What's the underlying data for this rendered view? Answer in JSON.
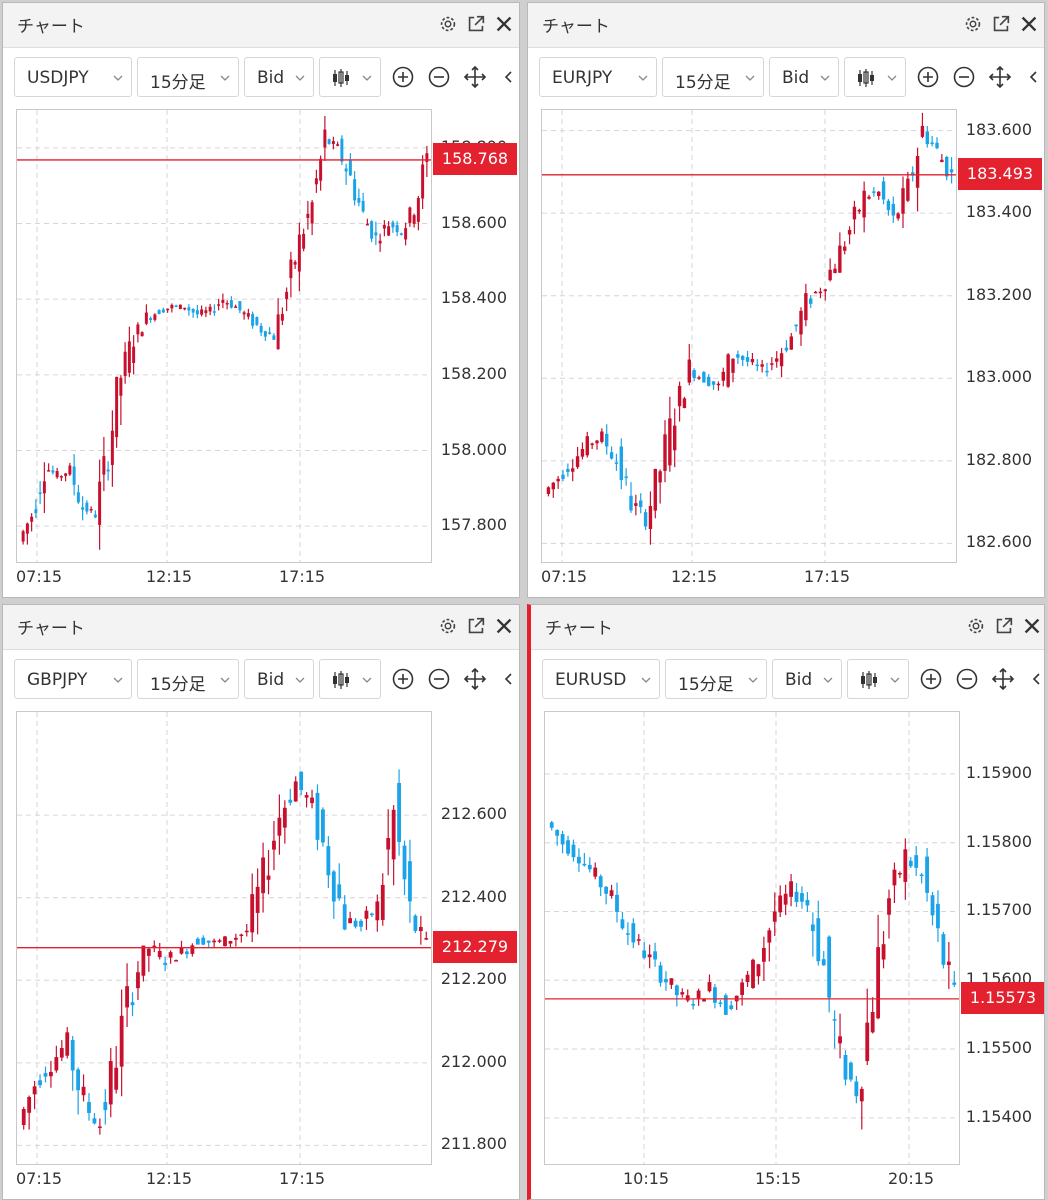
{
  "panels": [
    {
      "window_title": "チャート",
      "symbol": "USDJPY",
      "timeframe": "15分足",
      "price_type": "Bid",
      "current_price": "158.768",
      "y_ticks": [
        "158.800",
        "158.600",
        "158.400",
        "158.200",
        "158.000",
        "157.800"
      ],
      "x_ticks": [
        "07:15",
        "12:15",
        "17:15"
      ],
      "active": false
    },
    {
      "window_title": "チャート",
      "symbol": "EURJPY",
      "timeframe": "15分足",
      "price_type": "Bid",
      "current_price": "183.493",
      "y_ticks": [
        "183.600",
        "183.400",
        "183.200",
        "183.000",
        "182.800",
        "182.600"
      ],
      "x_ticks": [
        "07:15",
        "12:15",
        "17:15"
      ],
      "active": false
    },
    {
      "window_title": "チャート",
      "symbol": "GBPJPY",
      "timeframe": "15分足",
      "price_type": "Bid",
      "current_price": "212.279",
      "y_ticks": [
        "212.600",
        "212.400",
        "212.200",
        "212.000",
        "211.800"
      ],
      "x_ticks": [
        "07:15",
        "12:15",
        "17:15"
      ],
      "active": false
    },
    {
      "window_title": "チャート",
      "symbol": "EURUSD",
      "timeframe": "15分足",
      "price_type": "Bid",
      "current_price": "1.15573",
      "y_ticks": [
        "1.15900",
        "1.15800",
        "1.15700",
        "1.15600",
        "1.15500",
        "1.15400"
      ],
      "x_ticks": [
        "10:15",
        "15:15",
        "20:15"
      ],
      "active": true
    }
  ],
  "colors": {
    "up": "#c8102e",
    "down": "#1aa3e8",
    "price_line": "#e3212f"
  },
  "chart_data": [
    {
      "type": "candlestick",
      "symbol": "USDJPY",
      "price_line": 158.768,
      "ylim": [
        157.7,
        158.9
      ],
      "x_ticks": [
        "07:15",
        "12:15",
        "17:15"
      ],
      "close_path": [
        157.76,
        157.83,
        157.96,
        157.93,
        157.95,
        157.85,
        157.83,
        158.0,
        158.2,
        158.3,
        158.35,
        158.37,
        158.38,
        158.38,
        158.36,
        158.37,
        158.4,
        158.38,
        158.35,
        158.32,
        158.3,
        158.42,
        158.55,
        158.65,
        158.82,
        158.8,
        158.72,
        158.62,
        158.56,
        158.6,
        158.58,
        158.64,
        158.77
      ]
    },
    {
      "type": "candlestick",
      "symbol": "EURJPY",
      "price_line": 183.493,
      "ylim": [
        182.55,
        183.65
      ],
      "x_ticks": [
        "07:15",
        "12:15",
        "17:15"
      ],
      "close_path": [
        182.72,
        182.76,
        182.8,
        182.84,
        182.86,
        182.8,
        182.7,
        182.66,
        182.78,
        182.92,
        183.02,
        183.0,
        182.98,
        183.06,
        183.04,
        183.02,
        183.05,
        183.1,
        183.18,
        183.22,
        183.28,
        183.36,
        183.44,
        183.45,
        183.38,
        183.46,
        183.6,
        183.55,
        183.49
      ]
    },
    {
      "type": "candlestick",
      "symbol": "GBPJPY",
      "price_line": 212.279,
      "ylim": [
        211.75,
        212.85
      ],
      "x_ticks": [
        "07:15",
        "12:15",
        "17:15"
      ],
      "close_path": [
        211.85,
        211.95,
        212.0,
        212.05,
        211.9,
        211.85,
        212.02,
        212.2,
        212.28,
        212.25,
        212.27,
        212.3,
        212.29,
        212.3,
        212.32,
        212.45,
        212.6,
        212.68,
        212.62,
        212.48,
        212.35,
        212.33,
        212.38,
        212.6,
        212.35,
        212.28
      ]
    },
    {
      "type": "candlestick",
      "symbol": "EURUSD",
      "price_line": 1.15573,
      "ylim": [
        1.1533,
        1.1599
      ],
      "x_ticks": [
        "10:15",
        "15:15",
        "20:15"
      ],
      "close_path": [
        1.1583,
        1.158,
        1.1578,
        1.1575,
        1.1572,
        1.1567,
        1.1564,
        1.1561,
        1.1558,
        1.1557,
        1.1559,
        1.1556,
        1.1559,
        1.1563,
        1.157,
        1.1573,
        1.1571,
        1.1562,
        1.1548,
        1.1544,
        1.1558,
        1.1572,
        1.1578,
        1.1575,
        1.1566,
        1.1557
      ]
    }
  ]
}
